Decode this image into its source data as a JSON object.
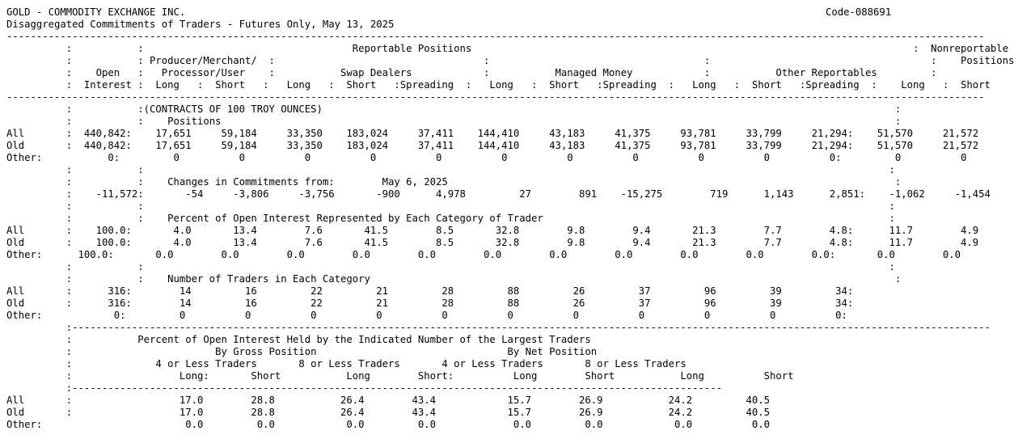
{
  "header": {
    "title": "GOLD - COMMODITY EXCHANGE INC.",
    "code": "Code-088691",
    "subtitle": "Disaggregated Commitments of Traders - Futures Only, May 13, 2025"
  },
  "report_lines": [
    "--------------------------------------------------------------------------------------------------------------------------------------------------------------------",
    "          :           :                                   Reportable Positions                                                                          :  Nonreportable",
    "          :           : Producer/Merchant/  :                                   :                                    :                                     :    Positions",
    "          :    Open   :   Processor/User    :           Swap Dealers            :           Managed Money            :           Other Reportables         :",
    "          :  Interest :  Long   :  Short   :   Long   :  Short   :Spreading  :   Long   :  Short   :Spreading  :   Long   :  Short   :Spreading  :    Long   :  Short",
    "--------------------------------------------------------------------------------------------------------------------------------------------------------------------",
    "          :           :(CONTRACTS OF 100 TROY OUNCES)                                                                                                :",
    "          :           :    Positions                                                                                                                 :",
    "All       :  440,842:    17,651     59,184     33,350    183,024     37,411    144,410     43,183     41,375     93,781     33,799     21,294:    51,570     21,572",
    "Old       :  440,842:    17,651     59,184     33,350    183,024     37,411    144,410     43,183     41,375     93,781     33,799     21,294:    51,570     21,572",
    "Other:           0:         0          0          0          0          0          0          0          0          0          0          0:         0          0",
    "          :           :                                                                                                                             :",
    "          :           :    Changes in Commitments from:        May 6, 2025                                                                           :",
    "          :    -11,572:       -54     -3,806     -3,756       -900      4,978         27        891    -15,275        719      1,143      2,851:    -1,062     -1,454",
    "          :           :                                                                                                                             :",
    "          :           :    Percent of Open Interest Represented by Each Category of Trader                                                          :",
    "All       :    100.0:       4.0       13.4        7.6       41.5        8.5       32.8        9.8        9.4       21.3        7.7        4.8:      11.7        4.9",
    "Old       :    100.0:       4.0       13.4        7.6       41.5        8.5       32.8        9.8        9.4       21.3        7.7        4.8:      11.7        4.9",
    "Other:      100.0:       0.0        0.0        0.0        0.0        0.0        0.0        0.0        0.0        0.0        0.0        0.0:       0.0        0.0",
    "          :           :                                                                                                                             :",
    "          :           :    Number of Traders in Each Category                                                                                        :",
    "All       :      316:        14         16         22         21         28         88         26         37         96         39         34:",
    "Old       :      316:        14         16         22         21         28         88         26         37         96         39         34:",
    "Other:            0:         0          0          0          0          0          0          0          0          0          0          0:",
    "          :----------------------------------------------------------------------------------------------------------------------------------------------------------",
    "          :           Percent of Open Interest Held by the Indicated Number of the Largest Traders",
    "          :                        By Gross Position                                By Net Position",
    "          :              4 or Less Traders       8 or Less Traders       4 or Less Traders       8 or Less Traders",
    "          :                  Long:       Short           Long        Short:          Long        Short           Long          Short",
    "          :-------------------------------------------------------------------------------------------------------------",
    "All       :                  17.0        28.8           26.4        43.4            15.7        26.9           24.2         40.5",
    "Old       :                  17.0        28.8           26.4        43.4            15.7        26.9           24.2         40.5",
    "Other:                        0.0         0.0            0.0         0.0             0.0         0.0            0.0          0.0"
  ]
}
